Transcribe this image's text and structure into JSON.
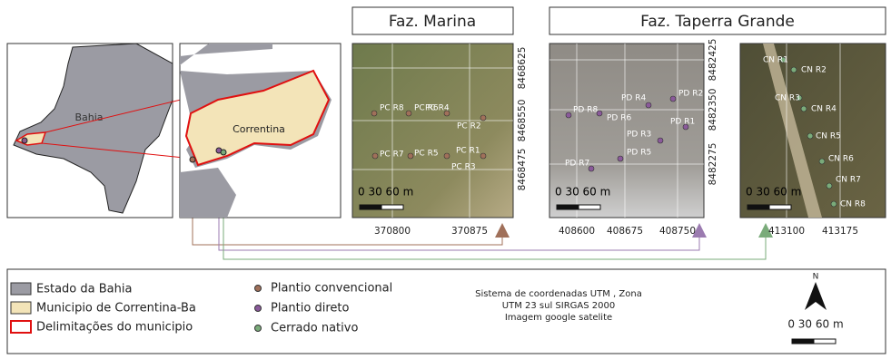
{
  "inset": {
    "state_label": "Bahia",
    "municipality_label": "Correntina"
  },
  "titles": [
    "Faz. Marina",
    "Faz. Taperra Grande"
  ],
  "panels": [
    {
      "xticks": [
        370800,
        370875
      ],
      "yticks": [
        8468625,
        8468550,
        8468475
      ],
      "points": [
        "PC R8",
        "PC R6",
        "PC R4",
        "PC R2",
        "PC R7",
        "PC R5",
        "PC R1",
        "PC R3"
      ],
      "scale": "0   30   60 m"
    },
    {
      "xticks": [
        408600,
        408675,
        408750
      ],
      "yticks": [
        8482425,
        8482350,
        8482275
      ],
      "points": [
        "PD R8",
        "PD R6",
        "PD R4",
        "PD R2",
        "PD R1",
        "PD R3",
        "PD R5",
        "PD R7"
      ],
      "scale": "0   30   60 m"
    },
    {
      "xticks": [
        413100,
        413175
      ],
      "points": [
        "CN R1",
        "CN R2",
        "CN R3",
        "CN R4",
        "CN R5",
        "CN R6",
        "CN R7",
        "CN R8"
      ],
      "scale": "0   30   60 m"
    }
  ],
  "legend": {
    "items": [
      "Estado da Bahia",
      "Municipio de Correntina-Ba",
      "Delimitações do municipio",
      "Plantio convencional",
      "Plantio direto",
      "Cerrado nativo"
    ],
    "crs": [
      "Sistema de coordenadas UTM , Zona",
      "UTM 23 sul SIRGAS 2000",
      "Imagem google satelite"
    ],
    "north": "N",
    "scale": "0   30   60 m"
  }
}
